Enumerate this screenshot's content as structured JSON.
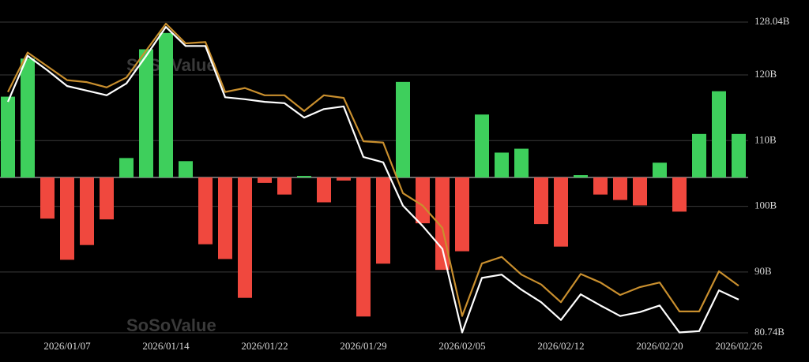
{
  "chart_data": {
    "type": "bar-line",
    "watermark": "SoSoValue",
    "categories": [
      null,
      null,
      null,
      "2026/01/07",
      null,
      null,
      null,
      null,
      "2026/01/14",
      null,
      null,
      null,
      null,
      "2026/01/22",
      null,
      null,
      null,
      null,
      "2026/01/29",
      null,
      null,
      null,
      null,
      "2026/02/05",
      null,
      null,
      null,
      null,
      "2026/02/12",
      null,
      null,
      null,
      null,
      "2026/02/20",
      null,
      null,
      null,
      "2026/02/26"
    ],
    "ylim": [
      80.74,
      128.04
    ],
    "yticks": [
      {
        "value": 128.04,
        "label": "128.04B"
      },
      {
        "value": 120,
        "label": "120B"
      },
      {
        "value": 110,
        "label": "110B"
      },
      {
        "value": 100,
        "label": "100B"
      },
      {
        "value": 90,
        "label": "90B"
      },
      {
        "value": 80.74,
        "label": "80.74B"
      }
    ],
    "y2lim": [
      -200,
      200
    ],
    "grid": true,
    "positive_color": "#3ecf5c",
    "negative_color": "#f0483e",
    "series": [
      {
        "type": "bar",
        "axis": "y2",
        "values": [
          104,
          153,
          -53,
          -106,
          -87,
          -54,
          25,
          165,
          186,
          21,
          -86,
          -105,
          -155,
          -7,
          -22,
          2,
          -32,
          -4,
          -179,
          -111,
          123,
          -59,
          -119,
          -95,
          81,
          32,
          37,
          -60,
          -89,
          3,
          -22,
          -29,
          -36,
          19,
          -44,
          56,
          111,
          56
        ]
      },
      {
        "type": "line",
        "color": "#c98f2e",
        "values": [
          117.4,
          123.4,
          121.3,
          119.2,
          118.9,
          118.1,
          119.6,
          123.7,
          127.8,
          124.8,
          125.0,
          117.4,
          118.0,
          116.9,
          116.9,
          114.5,
          116.9,
          116.5,
          109.9,
          109.7,
          102.0,
          100.1,
          96.7,
          83.3,
          91.3,
          92.3,
          89.6,
          88.1,
          85.4,
          89.7,
          88.4,
          86.5,
          87.7,
          88.4,
          84.0,
          84.0,
          90.1,
          87.9
        ]
      },
      {
        "type": "line",
        "color": "#ffffff",
        "values": [
          115.9,
          122.9,
          120.7,
          118.3,
          117.6,
          116.9,
          118.7,
          122.9,
          127.3,
          124.4,
          124.4,
          116.6,
          116.3,
          115.9,
          115.7,
          113.5,
          114.8,
          115.2,
          107.5,
          106.7,
          100.1,
          97.0,
          93.5,
          80.8,
          89.1,
          89.6,
          87.3,
          85.4,
          82.7,
          86.6,
          84.9,
          83.3,
          83.9,
          84.9,
          80.8,
          81.0,
          87.2,
          85.8
        ]
      }
    ]
  }
}
